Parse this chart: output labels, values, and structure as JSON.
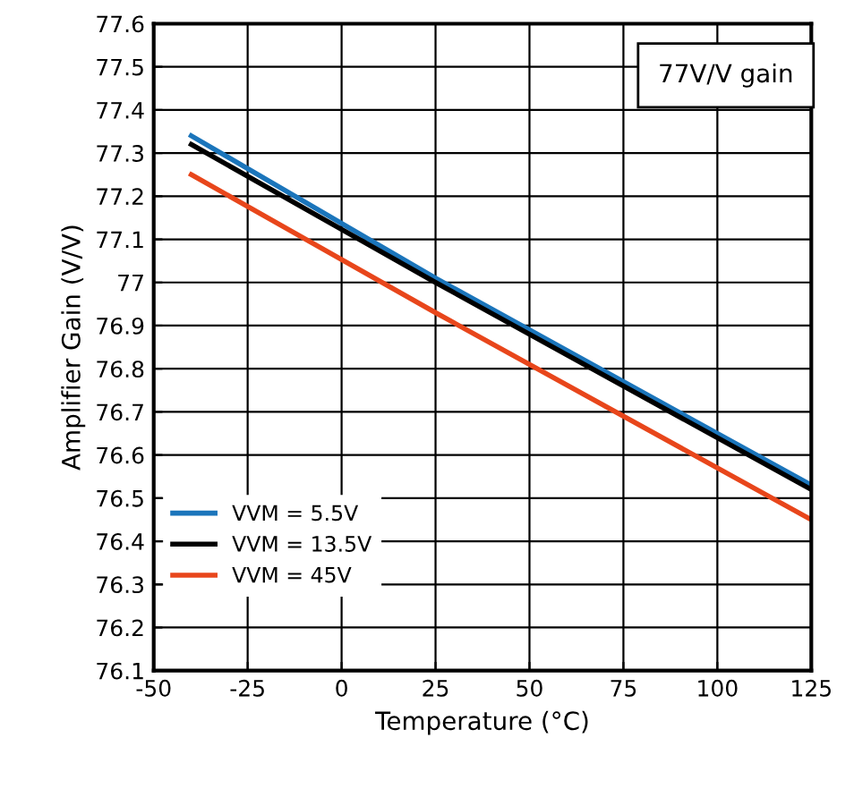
{
  "chart_data": {
    "type": "line",
    "xlabel": "Temperature (°C)",
    "ylabel": "Amplifier Gain (V/V)",
    "annotations": [
      "77V/V gain"
    ],
    "x": [
      -40,
      25,
      125
    ],
    "series": [
      {
        "name": "VVM = 5.5V",
        "color": "#1b75bb",
        "values": [
          77.34,
          77.01,
          76.53
        ]
      },
      {
        "name": "VVM = 13.5V",
        "color": "#000000",
        "values": [
          77.32,
          77.0,
          76.52
        ]
      },
      {
        "name": "VVM = 45V",
        "color": "#e8461b",
        "values": [
          77.25,
          76.93,
          76.45
        ]
      }
    ],
    "xlim": [
      -50,
      125
    ],
    "xticks": [
      -50,
      -25,
      0,
      25,
      50,
      75,
      100,
      125
    ],
    "ylim": [
      76.1,
      77.6
    ],
    "yticks": [
      76.1,
      76.2,
      76.3,
      76.4,
      76.5,
      76.6,
      76.7,
      76.8,
      76.9,
      77,
      77.1,
      77.2,
      77.3,
      77.4,
      77.5,
      77.6
    ],
    "grid": true,
    "legend": "bottom left",
    "marker": "none",
    "line_style": "solid"
  }
}
